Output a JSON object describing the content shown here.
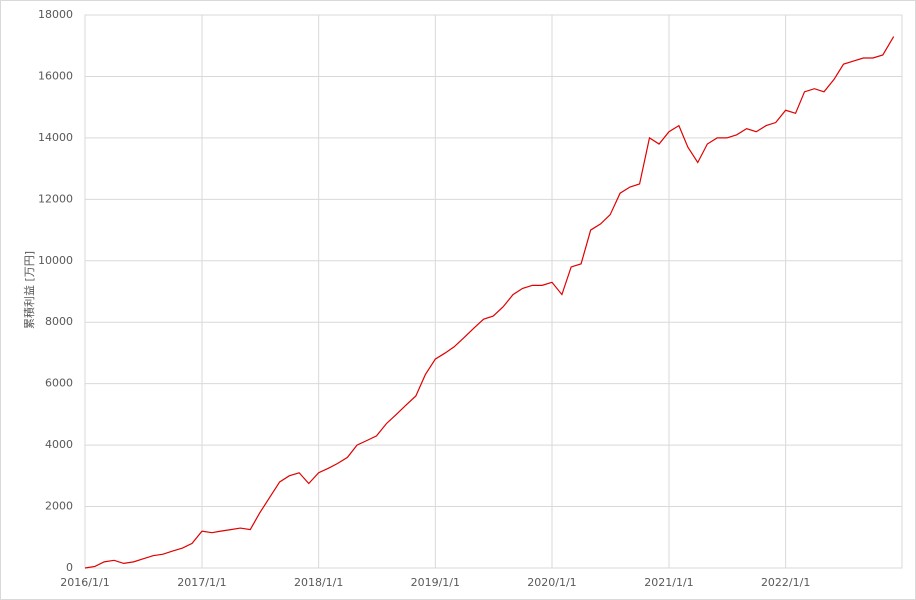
{
  "chart_data": {
    "type": "line",
    "ylabel": "累積利益 [万円]",
    "x": [
      "2016/1/1",
      "2016/2/1",
      "2016/3/1",
      "2016/4/1",
      "2016/5/1",
      "2016/6/1",
      "2016/7/1",
      "2016/8/1",
      "2016/9/1",
      "2016/10/1",
      "2016/11/1",
      "2016/12/1",
      "2017/1/1",
      "2017/2/1",
      "2017/3/1",
      "2017/4/1",
      "2017/5/1",
      "2017/6/1",
      "2017/7/1",
      "2017/8/1",
      "2017/9/1",
      "2017/10/1",
      "2017/11/1",
      "2017/12/1",
      "2018/1/1",
      "2018/2/1",
      "2018/3/1",
      "2018/4/1",
      "2018/5/1",
      "2018/6/1",
      "2018/7/1",
      "2018/8/1",
      "2018/9/1",
      "2018/10/1",
      "2018/11/1",
      "2018/12/1",
      "2019/1/1",
      "2019/2/1",
      "2019/3/1",
      "2019/4/1",
      "2019/5/1",
      "2019/6/1",
      "2019/7/1",
      "2019/8/1",
      "2019/9/1",
      "2019/10/1",
      "2019/11/1",
      "2019/12/1",
      "2020/1/1",
      "2020/2/1",
      "2020/3/1",
      "2020/4/1",
      "2020/5/1",
      "2020/6/1",
      "2020/7/1",
      "2020/8/1",
      "2020/9/1",
      "2020/10/1",
      "2020/11/1",
      "2020/12/1",
      "2021/1/1",
      "2021/2/1",
      "2021/3/1",
      "2021/4/1",
      "2021/5/1",
      "2021/6/1",
      "2021/7/1",
      "2021/8/1",
      "2021/9/1",
      "2021/10/1",
      "2021/11/1",
      "2021/12/1",
      "2022/1/1",
      "2022/2/1",
      "2022/3/1",
      "2022/4/1",
      "2022/5/1",
      "2022/6/1",
      "2022/7/1",
      "2022/8/1",
      "2022/9/1",
      "2022/10/1",
      "2022/11/1",
      "2022/12/5"
    ],
    "series": [
      {
        "name": "累積利益",
        "color": "#e00000",
        "values": [
          0,
          50,
          200,
          250,
          150,
          200,
          300,
          400,
          450,
          550,
          650,
          800,
          1200,
          1150,
          1200,
          1250,
          1300,
          1250,
          1800,
          2300,
          2800,
          3000,
          3100,
          2750,
          3100,
          3250,
          3400,
          3600,
          4000,
          4150,
          4300,
          4700,
          5000,
          5300,
          5600,
          6300,
          6800,
          7000,
          7200,
          7500,
          7800,
          8100,
          8200,
          8500,
          8900,
          9100,
          9200,
          9200,
          9300,
          8900,
          9800,
          9900,
          11000,
          11200,
          11500,
          12200,
          12400,
          12500,
          14000,
          13800,
          14200,
          14400,
          13700,
          13200,
          13800,
          14000,
          14000,
          14100,
          14300,
          14200,
          14400,
          14500,
          14900,
          14800,
          15500,
          15600,
          15500,
          15900,
          16400,
          16500,
          16600,
          16600,
          16700,
          17300
        ]
      }
    ],
    "xlim": [
      "2016/1/1",
      "2022/12/31"
    ],
    "xticks": [
      "2016/1/1",
      "2017/1/1",
      "2018/1/1",
      "2019/1/1",
      "2020/1/1",
      "2021/1/1",
      "2022/1/1"
    ],
    "ylim": [
      0,
      18000
    ],
    "yticks": [
      0,
      2000,
      4000,
      6000,
      8000,
      10000,
      12000,
      14000,
      16000,
      18000
    ],
    "grid": true
  }
}
